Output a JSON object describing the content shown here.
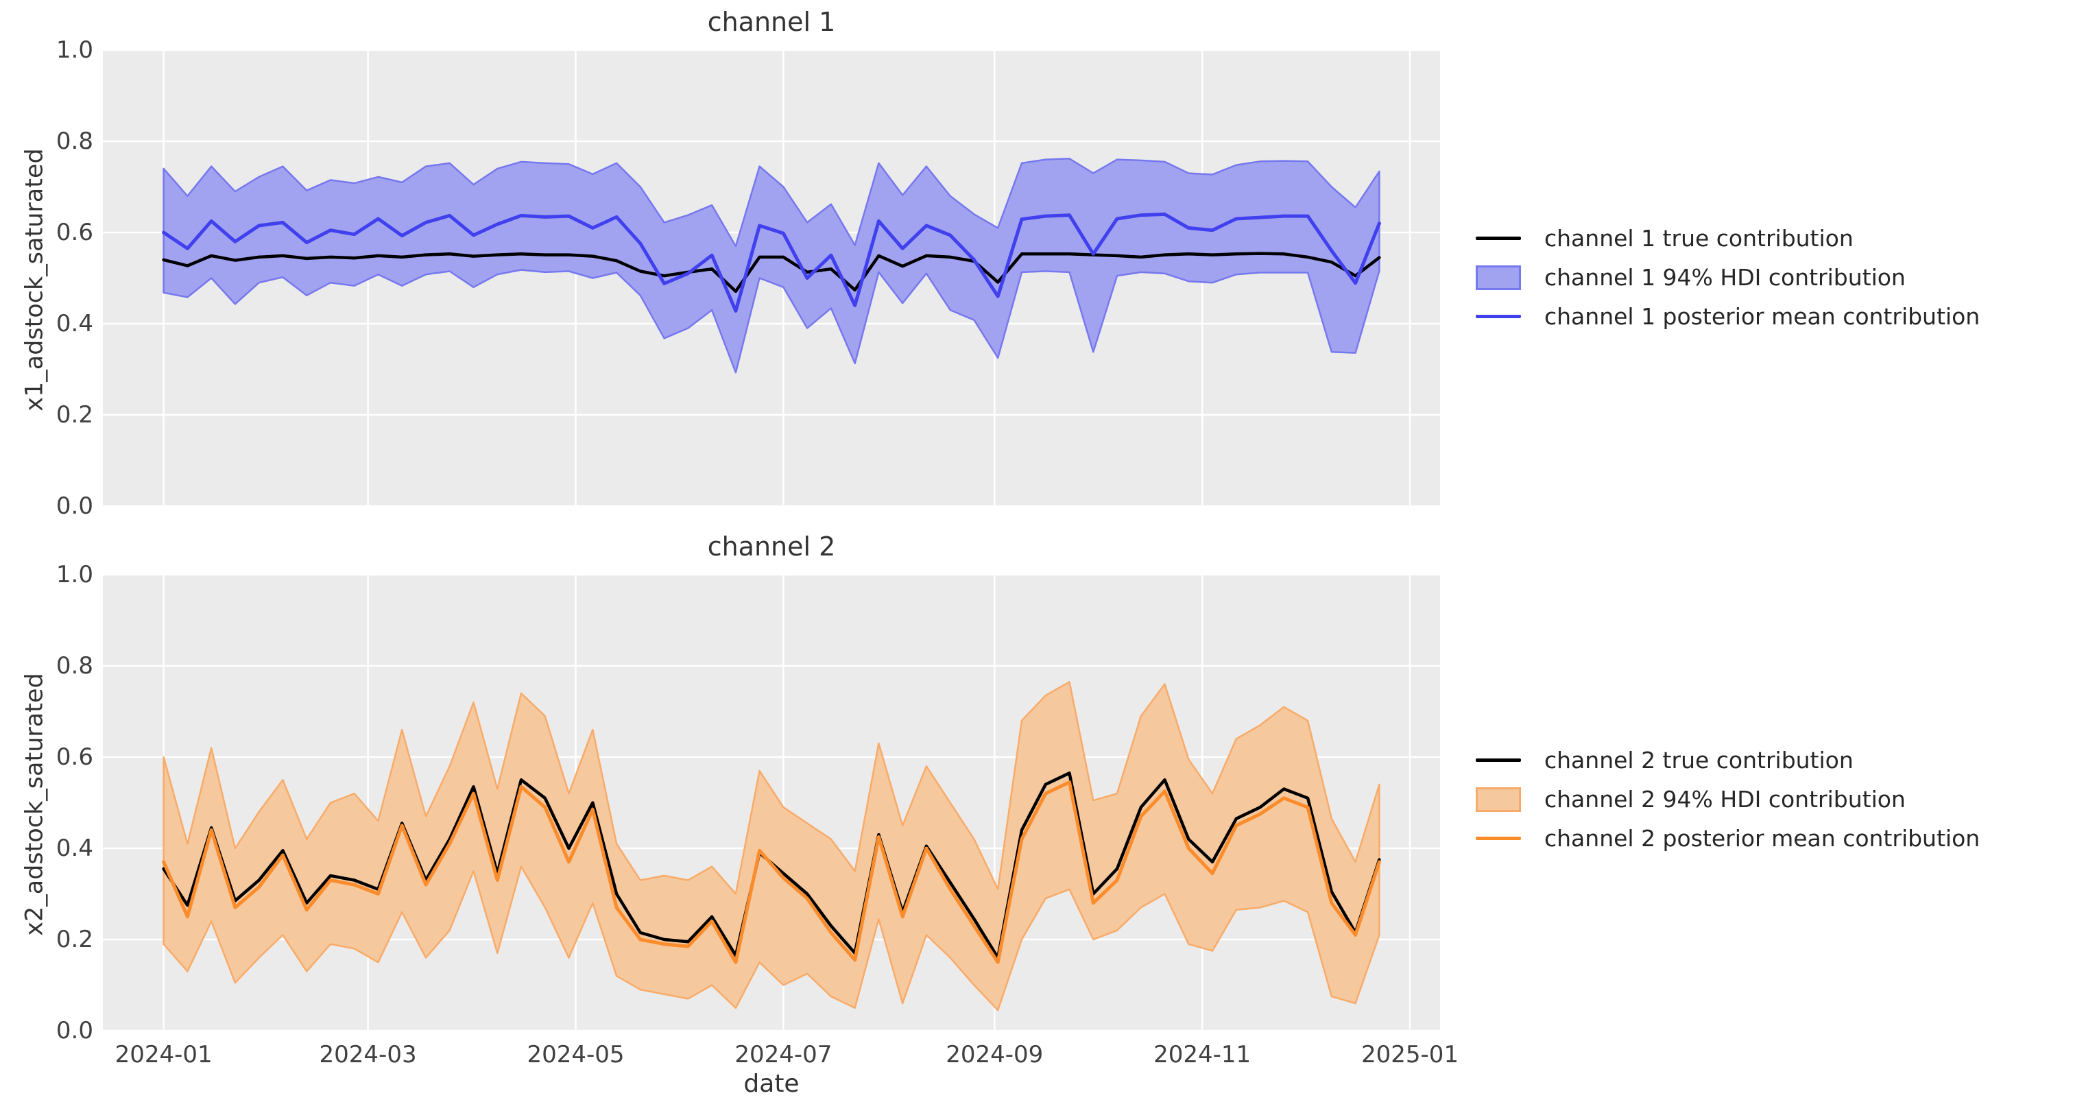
{
  "figure": {
    "background": "#ffffff",
    "axes_background": "#ebebeb",
    "grid_color": "#ffffff",
    "text_color": "#333333",
    "tick_color": "#404040"
  },
  "xlabel": "date",
  "y_ticks": [
    "0.0",
    "0.2",
    "0.4",
    "0.6",
    "0.8",
    "1.0"
  ],
  "x_ticks": [
    {
      "label": "2024-01",
      "day": 0
    },
    {
      "label": "2024-03",
      "day": 60
    },
    {
      "label": "2024-05",
      "day": 121
    },
    {
      "label": "2024-07",
      "day": 182
    },
    {
      "label": "2024-09",
      "day": 244
    },
    {
      "label": "2024-11",
      "day": 305
    },
    {
      "label": "2025-01",
      "day": 366
    }
  ],
  "charts": [
    {
      "title": "channel 1",
      "ylabel": "x1_adstock_saturated",
      "legend": [
        {
          "label": "channel 1 true contribution",
          "swatch": "line",
          "color": "#000000"
        },
        {
          "label": "channel 1 94% HDI contribution",
          "swatch": "patch",
          "fill": "#a2a3f0",
          "edge": "#7678ee"
        },
        {
          "label": "channel 1 posterior mean contribution",
          "swatch": "line",
          "color": "#4040ee"
        }
      ]
    },
    {
      "title": "channel 2",
      "ylabel": "x2_adstock_saturated",
      "legend": [
        {
          "label": "channel 2 true contribution",
          "swatch": "line",
          "color": "#000000"
        },
        {
          "label": "channel 2 94% HDI contribution",
          "swatch": "patch",
          "fill": "#f6c89e",
          "edge": "#f8ab69"
        },
        {
          "label": "channel 2 posterior mean contribution",
          "swatch": "line",
          "color": "#fb8c2c"
        }
      ]
    }
  ],
  "chart_data": [
    {
      "type": "line",
      "title": "channel 1",
      "xlabel": "date",
      "ylabel": "x1_adstock_saturated",
      "ylim": [
        0.0,
        1.0
      ],
      "grid": true,
      "legend_position": "right-outside",
      "x_weekly_dates": [
        "2024-01-01",
        "2024-01-08",
        "2024-01-15",
        "2024-01-22",
        "2024-01-29",
        "2024-02-05",
        "2024-02-12",
        "2024-02-19",
        "2024-02-26",
        "2024-03-04",
        "2024-03-11",
        "2024-03-18",
        "2024-03-25",
        "2024-04-01",
        "2024-04-08",
        "2024-04-15",
        "2024-04-22",
        "2024-04-29",
        "2024-05-06",
        "2024-05-13",
        "2024-05-20",
        "2024-05-27",
        "2024-06-03",
        "2024-06-10",
        "2024-06-17",
        "2024-06-24",
        "2024-07-01",
        "2024-07-08",
        "2024-07-15",
        "2024-07-22",
        "2024-07-29",
        "2024-08-05",
        "2024-08-12",
        "2024-08-19",
        "2024-08-26",
        "2024-09-02",
        "2024-09-09",
        "2024-09-16",
        "2024-09-23",
        "2024-09-30",
        "2024-10-07",
        "2024-10-14",
        "2024-10-21",
        "2024-10-28",
        "2024-11-04",
        "2024-11-11",
        "2024-11-18",
        "2024-11-25",
        "2024-12-02",
        "2024-12-09",
        "2024-12-16",
        "2024-12-23"
      ],
      "series": [
        {
          "name": "channel 1 true contribution",
          "kind": "line",
          "color": "#000000",
          "width": 4.5,
          "values": [
            0.54,
            0.527,
            0.549,
            0.539,
            0.546,
            0.549,
            0.543,
            0.546,
            0.544,
            0.549,
            0.546,
            0.551,
            0.553,
            0.548,
            0.551,
            0.553,
            0.551,
            0.551,
            0.548,
            0.538,
            0.515,
            0.505,
            0.513,
            0.52,
            0.471,
            0.546,
            0.546,
            0.513,
            0.52,
            0.474,
            0.549,
            0.526,
            0.549,
            0.546,
            0.537,
            0.491,
            0.553,
            0.553,
            0.553,
            0.551,
            0.549,
            0.546,
            0.551,
            0.553,
            0.551,
            0.553,
            0.554,
            0.553,
            0.546,
            0.535,
            0.505,
            0.545
          ]
        },
        {
          "name": "channel 1 posterior mean contribution",
          "kind": "line",
          "color": "#4040ee",
          "width": 5,
          "values": [
            0.6,
            0.565,
            0.625,
            0.58,
            0.615,
            0.622,
            0.578,
            0.605,
            0.596,
            0.63,
            0.593,
            0.622,
            0.637,
            0.594,
            0.618,
            0.637,
            0.634,
            0.636,
            0.61,
            0.634,
            0.576,
            0.488,
            0.51,
            0.55,
            0.428,
            0.615,
            0.598,
            0.5,
            0.55,
            0.44,
            0.625,
            0.565,
            0.615,
            0.594,
            0.54,
            0.46,
            0.629,
            0.636,
            0.638,
            0.553,
            0.63,
            0.638,
            0.64,
            0.61,
            0.605,
            0.63,
            0.633,
            0.636,
            0.636,
            0.56,
            0.489,
            0.62
          ]
        },
        {
          "name": "channel 1 94% HDI contribution",
          "kind": "band",
          "fill": "#a2a3f0",
          "edge": "#7678ee",
          "upper": [
            0.74,
            0.68,
            0.745,
            0.69,
            0.722,
            0.745,
            0.692,
            0.715,
            0.708,
            0.722,
            0.71,
            0.745,
            0.752,
            0.705,
            0.74,
            0.755,
            0.752,
            0.75,
            0.728,
            0.752,
            0.7,
            0.622,
            0.638,
            0.66,
            0.57,
            0.745,
            0.7,
            0.622,
            0.662,
            0.572,
            0.752,
            0.682,
            0.745,
            0.68,
            0.64,
            0.61,
            0.752,
            0.76,
            0.762,
            0.73,
            0.76,
            0.758,
            0.755,
            0.73,
            0.727,
            0.748,
            0.756,
            0.757,
            0.756,
            0.7,
            0.655,
            0.734
          ],
          "lower": [
            0.468,
            0.458,
            0.5,
            0.443,
            0.49,
            0.502,
            0.462,
            0.49,
            0.483,
            0.508,
            0.483,
            0.508,
            0.515,
            0.48,
            0.508,
            0.518,
            0.513,
            0.515,
            0.5,
            0.512,
            0.462,
            0.368,
            0.39,
            0.43,
            0.293,
            0.5,
            0.48,
            0.39,
            0.434,
            0.313,
            0.513,
            0.445,
            0.51,
            0.43,
            0.408,
            0.325,
            0.513,
            0.515,
            0.513,
            0.338,
            0.505,
            0.513,
            0.51,
            0.493,
            0.49,
            0.508,
            0.512,
            0.512,
            0.512,
            0.338,
            0.336,
            0.516
          ]
        }
      ]
    },
    {
      "type": "line",
      "title": "channel 2",
      "xlabel": "date",
      "ylabel": "x2_adstock_saturated",
      "ylim": [
        0.0,
        1.0
      ],
      "grid": true,
      "legend_position": "right-outside",
      "x_weekly_dates": [
        "2024-01-01",
        "2024-01-08",
        "2024-01-15",
        "2024-01-22",
        "2024-01-29",
        "2024-02-05",
        "2024-02-12",
        "2024-02-19",
        "2024-02-26",
        "2024-03-04",
        "2024-03-11",
        "2024-03-18",
        "2024-03-25",
        "2024-04-01",
        "2024-04-08",
        "2024-04-15",
        "2024-04-22",
        "2024-04-29",
        "2024-05-06",
        "2024-05-13",
        "2024-05-20",
        "2024-05-27",
        "2024-06-03",
        "2024-06-10",
        "2024-06-17",
        "2024-06-24",
        "2024-07-01",
        "2024-07-08",
        "2024-07-15",
        "2024-07-22",
        "2024-07-29",
        "2024-08-05",
        "2024-08-12",
        "2024-08-19",
        "2024-08-26",
        "2024-09-02",
        "2024-09-09",
        "2024-09-16",
        "2024-09-23",
        "2024-09-30",
        "2024-10-07",
        "2024-10-14",
        "2024-10-21",
        "2024-10-28",
        "2024-11-04",
        "2024-11-11",
        "2024-11-18",
        "2024-11-25",
        "2024-12-02",
        "2024-12-09",
        "2024-12-16",
        "2024-12-23"
      ],
      "series": [
        {
          "name": "channel 2 true contribution",
          "kind": "line",
          "color": "#000000",
          "width": 4.5,
          "values": [
            0.355,
            0.275,
            0.445,
            0.285,
            0.33,
            0.395,
            0.28,
            0.34,
            0.33,
            0.31,
            0.455,
            0.33,
            0.42,
            0.535,
            0.345,
            0.55,
            0.51,
            0.4,
            0.5,
            0.3,
            0.215,
            0.2,
            0.195,
            0.25,
            0.165,
            0.39,
            0.345,
            0.3,
            0.23,
            0.17,
            0.43,
            0.26,
            0.405,
            0.325,
            0.245,
            0.16,
            0.44,
            0.54,
            0.565,
            0.3,
            0.355,
            0.49,
            0.55,
            0.42,
            0.37,
            0.465,
            0.49,
            0.53,
            0.51,
            0.305,
            0.215,
            0.375
          ]
        },
        {
          "name": "channel 2 posterior mean contribution",
          "kind": "line",
          "color": "#fb8c2c",
          "width": 5,
          "values": [
            0.37,
            0.25,
            0.44,
            0.27,
            0.315,
            0.385,
            0.265,
            0.33,
            0.32,
            0.3,
            0.45,
            0.32,
            0.41,
            0.52,
            0.33,
            0.535,
            0.49,
            0.37,
            0.485,
            0.27,
            0.2,
            0.19,
            0.185,
            0.24,
            0.15,
            0.395,
            0.335,
            0.29,
            0.215,
            0.155,
            0.425,
            0.25,
            0.4,
            0.31,
            0.23,
            0.15,
            0.42,
            0.52,
            0.545,
            0.28,
            0.33,
            0.47,
            0.525,
            0.4,
            0.345,
            0.45,
            0.475,
            0.51,
            0.49,
            0.28,
            0.21,
            0.37
          ]
        },
        {
          "name": "channel 2 94% HDI contribution",
          "kind": "band",
          "fill": "#f6c89e",
          "edge": "#f8ab69",
          "upper": [
            0.6,
            0.41,
            0.62,
            0.4,
            0.48,
            0.55,
            0.42,
            0.5,
            0.52,
            0.46,
            0.66,
            0.47,
            0.58,
            0.72,
            0.53,
            0.74,
            0.69,
            0.52,
            0.66,
            0.41,
            0.33,
            0.34,
            0.33,
            0.36,
            0.3,
            0.57,
            0.49,
            0.455,
            0.42,
            0.35,
            0.63,
            0.45,
            0.58,
            0.5,
            0.42,
            0.31,
            0.68,
            0.735,
            0.765,
            0.505,
            0.52,
            0.69,
            0.76,
            0.595,
            0.52,
            0.64,
            0.67,
            0.71,
            0.68,
            0.465,
            0.37,
            0.54
          ],
          "lower": [
            0.19,
            0.13,
            0.24,
            0.105,
            0.16,
            0.21,
            0.13,
            0.19,
            0.18,
            0.15,
            0.26,
            0.16,
            0.22,
            0.35,
            0.17,
            0.36,
            0.27,
            0.16,
            0.28,
            0.12,
            0.09,
            0.08,
            0.07,
            0.1,
            0.05,
            0.15,
            0.1,
            0.125,
            0.075,
            0.05,
            0.245,
            0.06,
            0.21,
            0.16,
            0.1,
            0.045,
            0.2,
            0.29,
            0.31,
            0.2,
            0.22,
            0.27,
            0.3,
            0.19,
            0.175,
            0.265,
            0.27,
            0.285,
            0.26,
            0.075,
            0.06,
            0.21
          ]
        }
      ]
    }
  ]
}
